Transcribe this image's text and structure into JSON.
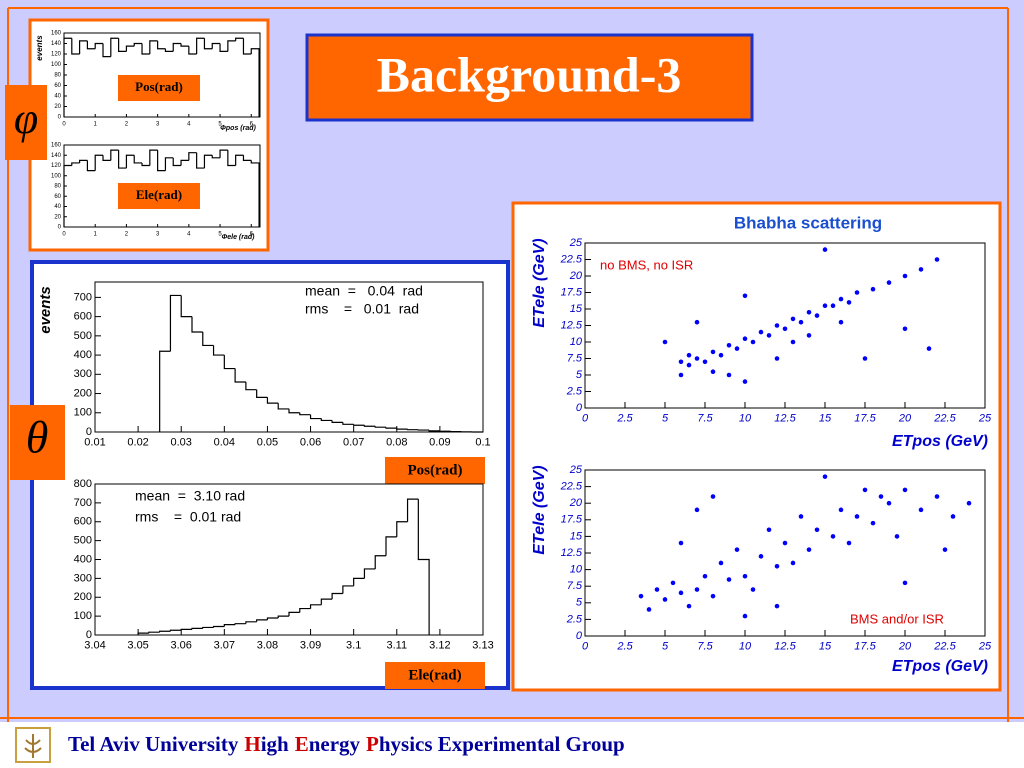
{
  "title": "Background-3",
  "symbols": [
    "φ",
    "θ"
  ],
  "labels": [
    "Pos(rad)",
    "Ele(rad)",
    "Pos(rad)",
    "Ele(rad)"
  ],
  "footer": [
    "Tel Aviv University",
    "H",
    "igh",
    "E",
    "nergy",
    "P",
    "hysics Experimental Group"
  ],
  "chart_data": [
    {
      "type": "histogram",
      "ylabel": "events",
      "xlabel": "Φpos (rad)",
      "color": "#000000",
      "bins": [
        0,
        0.25,
        0.5,
        0.75,
        1,
        1.25,
        1.5,
        1.75,
        2,
        2.25,
        2.5,
        2.75,
        3,
        3.25,
        3.5,
        3.75,
        4,
        4.25,
        4.5,
        4.75,
        5,
        5.25,
        5.5,
        5.75,
        6,
        6.25
      ],
      "values": [
        150,
        120,
        145,
        130,
        140,
        115,
        150,
        125,
        135,
        140,
        120,
        145,
        130,
        125,
        140,
        135,
        120,
        150,
        130,
        140,
        125,
        145,
        150,
        120,
        130
      ],
      "xlim": [
        0,
        6.28
      ],
      "xticks": [
        0,
        1,
        2,
        3,
        4,
        5,
        6
      ],
      "ylim": [
        0,
        160
      ],
      "yticks": [
        0,
        20,
        40,
        60,
        80,
        100,
        120,
        140,
        160
      ]
    },
    {
      "type": "histogram",
      "xlabel": "Φele (rad)",
      "color": "#000000",
      "bins": [
        0,
        0.25,
        0.5,
        0.75,
        1,
        1.25,
        1.5,
        1.75,
        2,
        2.25,
        2.5,
        2.75,
        3,
        3.25,
        3.5,
        3.75,
        4,
        4.25,
        4.5,
        4.75,
        5,
        5.25,
        5.5,
        5.75,
        6,
        6.25
      ],
      "values": [
        120,
        125,
        130,
        110,
        140,
        130,
        150,
        115,
        140,
        125,
        120,
        150,
        110,
        135,
        120,
        130,
        145,
        115,
        140,
        135,
        150,
        120,
        140,
        130,
        125
      ],
      "xlim": [
        0,
        6.28
      ],
      "xticks": [
        0,
        1,
        2,
        3,
        4,
        5,
        6
      ],
      "ylim": [
        0,
        160
      ],
      "yticks": [
        0,
        20,
        40,
        60,
        80,
        100,
        120,
        140,
        160
      ]
    },
    {
      "type": "histogram",
      "ylabel": "events",
      "annotations": [
        "mean  =   0.04  rad",
        "rms    =   0.01  rad"
      ],
      "color": "#000000",
      "bins": [
        0.025,
        0.0275,
        0.03,
        0.0325,
        0.035,
        0.0375,
        0.04,
        0.0425,
        0.045,
        0.0475,
        0.05,
        0.0525,
        0.055,
        0.0575,
        0.06,
        0.0625,
        0.065,
        0.0675,
        0.07,
        0.0725,
        0.075,
        0.0775,
        0.08,
        0.0825,
        0.085,
        0.0875,
        0.09,
        0.0925,
        0.095,
        0.0975,
        0.1
      ],
      "values": [
        420,
        710,
        600,
        520,
        450,
        400,
        330,
        260,
        220,
        180,
        150,
        120,
        100,
        90,
        70,
        60,
        50,
        40,
        35,
        30,
        25,
        20,
        15,
        12,
        10,
        6,
        4,
        2,
        1,
        0
      ],
      "xlim": [
        0.01,
        0.1
      ],
      "xticks": [
        0.01,
        0.02,
        0.03,
        0.04,
        0.05,
        0.06,
        0.07,
        0.08,
        0.09,
        0.1
      ],
      "ylim": [
        0,
        780
      ],
      "yticks": [
        0,
        100,
        200,
        300,
        400,
        500,
        600,
        700
      ]
    },
    {
      "type": "histogram",
      "annotations": [
        "mean  =  3.10 rad",
        "rms    =  0.01 rad"
      ],
      "color": "#000000",
      "bins": [
        3.05,
        3.0525,
        3.055,
        3.0575,
        3.06,
        3.0625,
        3.065,
        3.0675,
        3.07,
        3.0725,
        3.075,
        3.0775,
        3.08,
        3.0825,
        3.085,
        3.0875,
        3.09,
        3.0925,
        3.095,
        3.0975,
        3.1,
        3.1025,
        3.105,
        3.1075,
        3.11,
        3.1125,
        3.115,
        3.1175
      ],
      "values": [
        10,
        15,
        20,
        25,
        30,
        35,
        40,
        45,
        55,
        60,
        70,
        80,
        90,
        100,
        120,
        140,
        160,
        190,
        220,
        260,
        300,
        350,
        420,
        520,
        600,
        720,
        400
      ],
      "xlim": [
        3.04,
        3.13
      ],
      "xticks": [
        3.04,
        3.05,
        3.06,
        3.07,
        3.08,
        3.09,
        3.1,
        3.11,
        3.12,
        3.13
      ],
      "ylim": [
        0,
        800
      ],
      "yticks": [
        0,
        100,
        200,
        300,
        400,
        500,
        600,
        700,
        800
      ]
    },
    {
      "type": "scatter",
      "title": "Bhabha scattering",
      "xlabel": "ETpos (GeV)",
      "ylabel": "ETele (GeV)",
      "annotations": [
        "no BMS, no ISR"
      ],
      "color": "#0000ff",
      "x": [
        6,
        6.5,
        7,
        7.5,
        8,
        8.5,
        9,
        9.5,
        10,
        10.5,
        11,
        11.5,
        12,
        12.5,
        13,
        13.5,
        14,
        14.5,
        15,
        15.5,
        16,
        16.5,
        17,
        18,
        19,
        20,
        21,
        22,
        5,
        6,
        7,
        9,
        10,
        12,
        15,
        17.5,
        20,
        21.5,
        10,
        13,
        8,
        6.5,
        14,
        16
      ],
      "values": [
        7,
        6.5,
        7.5,
        7,
        8.5,
        8,
        9.5,
        9,
        10.5,
        10,
        11.5,
        11,
        12.5,
        12,
        13.5,
        13,
        14.5,
        14,
        15.5,
        15.5,
        16.5,
        16,
        17.5,
        18,
        19,
        20,
        21,
        22.5,
        10,
        5,
        13,
        5,
        4,
        7.5,
        24,
        7.5,
        12,
        9,
        17,
        10,
        5.5,
        8,
        11,
        13
      ],
      "xlim": [
        0,
        25
      ],
      "xticks": [
        0,
        2.5,
        5,
        7.5,
        10,
        12.5,
        15,
        17.5,
        20,
        22.5,
        25
      ],
      "ylim": [
        0,
        25
      ],
      "yticks": [
        0,
        2.5,
        5,
        7.5,
        10,
        12.5,
        15,
        17.5,
        20,
        22.5,
        25
      ]
    },
    {
      "type": "scatter",
      "xlabel": "ETpos (GeV)",
      "ylabel": "ETele (GeV)",
      "annotations": [
        "BMS and/or ISR"
      ],
      "color": "#0000ff",
      "x": [
        3.5,
        4,
        4.5,
        5,
        5.5,
        6,
        6.5,
        7,
        7.5,
        8,
        8.5,
        9,
        9.5,
        10,
        10.5,
        11,
        11.5,
        12,
        12.5,
        13,
        13.5,
        14,
        14.5,
        15,
        15.5,
        16,
        16.5,
        17,
        17.5,
        18,
        18.5,
        19,
        19.5,
        20,
        21,
        22,
        23,
        24,
        8,
        10,
        12,
        6,
        7,
        20,
        22.5
      ],
      "values": [
        6,
        4,
        7,
        5.5,
        8,
        6.5,
        4.5,
        7,
        9,
        6,
        11,
        8.5,
        13,
        9,
        7,
        12,
        16,
        10.5,
        14,
        11,
        18,
        13,
        16,
        24,
        15,
        19,
        14,
        18,
        22,
        17,
        21,
        20,
        15,
        22,
        19,
        21,
        18,
        20,
        21,
        3,
        4.5,
        14,
        19,
        8,
        13
      ],
      "xlim": [
        0,
        25
      ],
      "xticks": [
        0,
        2.5,
        5,
        7.5,
        10,
        12.5,
        15,
        17.5,
        20,
        22.5,
        25
      ],
      "ylim": [
        0,
        25
      ],
      "yticks": [
        0,
        2.5,
        5,
        7.5,
        10,
        12.5,
        15,
        17.5,
        20,
        22.5,
        25
      ]
    }
  ]
}
